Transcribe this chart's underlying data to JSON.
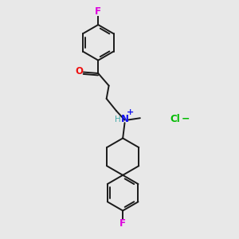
{
  "bg_color": "#e8e8e8",
  "bond_color": "#1a1a1a",
  "O_color": "#ee1111",
  "N_color": "#1111ee",
  "F_color": "#dd00dd",
  "Cl_color": "#00bb00",
  "H_color": "#44aaaa",
  "plus_color": "#1111ee",
  "figsize": [
    3.0,
    3.0
  ],
  "dpi": 100,
  "xlim": [
    0,
    10
  ],
  "ylim": [
    0,
    10
  ]
}
